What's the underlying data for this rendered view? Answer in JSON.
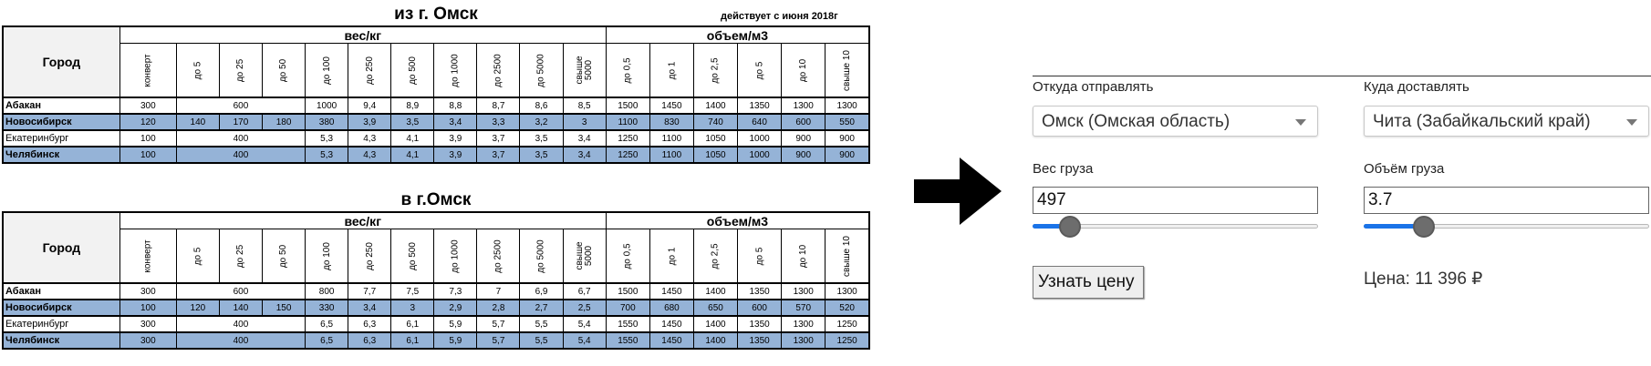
{
  "tables": [
    {
      "title": "из г. Омск",
      "note": "действует с июня 2018г",
      "city_header": "Город",
      "group_weight": "вес/кг",
      "group_volume": "объем/м3",
      "rows": [
        {
          "city": "Абакан",
          "cells": [
            {
              "v": "300",
              "s": 1
            },
            {
              "v": "600",
              "s": 3
            },
            {
              "v": "1000",
              "s": 1
            },
            {
              "v": "9,4",
              "s": 1
            },
            {
              "v": "8,9",
              "s": 1
            },
            {
              "v": "8,8",
              "s": 1
            },
            {
              "v": "8,7",
              "s": 1
            },
            {
              "v": "8,6",
              "s": 1
            },
            {
              "v": "8,5",
              "s": 1
            },
            {
              "v": "1500",
              "s": 1
            },
            {
              "v": "1450",
              "s": 1
            },
            {
              "v": "1400",
              "s": 1
            },
            {
              "v": "1350",
              "s": 1
            },
            {
              "v": "1300",
              "s": 1
            },
            {
              "v": "1300",
              "s": 1
            }
          ]
        },
        {
          "city": "Новосибирск",
          "cells": [
            {
              "v": "120",
              "s": 1
            },
            {
              "v": "140",
              "s": 1
            },
            {
              "v": "170",
              "s": 1
            },
            {
              "v": "180",
              "s": 1
            },
            {
              "v": "380",
              "s": 1
            },
            {
              "v": "3,9",
              "s": 1
            },
            {
              "v": "3,5",
              "s": 1
            },
            {
              "v": "3,4",
              "s": 1
            },
            {
              "v": "3,3",
              "s": 1
            },
            {
              "v": "3,2",
              "s": 1
            },
            {
              "v": "3",
              "s": 1
            },
            {
              "v": "1100",
              "s": 1
            },
            {
              "v": "830",
              "s": 1
            },
            {
              "v": "740",
              "s": 1
            },
            {
              "v": "640",
              "s": 1
            },
            {
              "v": "600",
              "s": 1
            },
            {
              "v": "550",
              "s": 1
            }
          ]
        },
        {
          "city": "Екатеринбург",
          "cells": [
            {
              "v": "100",
              "s": 1
            },
            {
              "v": "400",
              "s": 3
            },
            {
              "v": "5,3",
              "s": 1
            },
            {
              "v": "4,3",
              "s": 1
            },
            {
              "v": "4,1",
              "s": 1
            },
            {
              "v": "3,9",
              "s": 1
            },
            {
              "v": "3,7",
              "s": 1
            },
            {
              "v": "3,5",
              "s": 1
            },
            {
              "v": "3,4",
              "s": 1
            },
            {
              "v": "1250",
              "s": 1
            },
            {
              "v": "1100",
              "s": 1
            },
            {
              "v": "1050",
              "s": 1
            },
            {
              "v": "1000",
              "s": 1
            },
            {
              "v": "900",
              "s": 1
            },
            {
              "v": "900",
              "s": 1
            }
          ]
        },
        {
          "city": "Челябинск",
          "cells": [
            {
              "v": "100",
              "s": 1
            },
            {
              "v": "400",
              "s": 3
            },
            {
              "v": "5,3",
              "s": 1
            },
            {
              "v": "4,3",
              "s": 1
            },
            {
              "v": "4,1",
              "s": 1
            },
            {
              "v": "3,9",
              "s": 1
            },
            {
              "v": "3,7",
              "s": 1
            },
            {
              "v": "3,5",
              "s": 1
            },
            {
              "v": "3,4",
              "s": 1
            },
            {
              "v": "1250",
              "s": 1
            },
            {
              "v": "1100",
              "s": 1
            },
            {
              "v": "1050",
              "s": 1
            },
            {
              "v": "1000",
              "s": 1
            },
            {
              "v": "900",
              "s": 1
            },
            {
              "v": "900",
              "s": 1
            }
          ]
        }
      ]
    },
    {
      "title": "в г.Омск",
      "city_header": "Город",
      "group_weight": "вес/кг",
      "group_volume": "объем/м3",
      "rows": [
        {
          "city": "Абакан",
          "cells": [
            {
              "v": "300",
              "s": 1
            },
            {
              "v": "600",
              "s": 3
            },
            {
              "v": "800",
              "s": 1
            },
            {
              "v": "7,7",
              "s": 1
            },
            {
              "v": "7,5",
              "s": 1
            },
            {
              "v": "7,3",
              "s": 1
            },
            {
              "v": "7",
              "s": 1
            },
            {
              "v": "6,9",
              "s": 1
            },
            {
              "v": "6,7",
              "s": 1
            },
            {
              "v": "1500",
              "s": 1
            },
            {
              "v": "1450",
              "s": 1
            },
            {
              "v": "1400",
              "s": 1
            },
            {
              "v": "1350",
              "s": 1
            },
            {
              "v": "1300",
              "s": 1
            },
            {
              "v": "1300",
              "s": 1
            }
          ]
        },
        {
          "city": "Новосибирск",
          "cells": [
            {
              "v": "100",
              "s": 1
            },
            {
              "v": "120",
              "s": 1
            },
            {
              "v": "140",
              "s": 1
            },
            {
              "v": "150",
              "s": 1
            },
            {
              "v": "330",
              "s": 1
            },
            {
              "v": "3,4",
              "s": 1
            },
            {
              "v": "3",
              "s": 1
            },
            {
              "v": "2,9",
              "s": 1
            },
            {
              "v": "2,8",
              "s": 1
            },
            {
              "v": "2,7",
              "s": 1
            },
            {
              "v": "2,5",
              "s": 1
            },
            {
              "v": "700",
              "s": 1
            },
            {
              "v": "680",
              "s": 1
            },
            {
              "v": "650",
              "s": 1
            },
            {
              "v": "600",
              "s": 1
            },
            {
              "v": "570",
              "s": 1
            },
            {
              "v": "520",
              "s": 1
            }
          ]
        },
        {
          "city": "Екатеринбург",
          "cells": [
            {
              "v": "300",
              "s": 1
            },
            {
              "v": "400",
              "s": 3
            },
            {
              "v": "6,5",
              "s": 1
            },
            {
              "v": "6,3",
              "s": 1
            },
            {
              "v": "6,1",
              "s": 1
            },
            {
              "v": "5,9",
              "s": 1
            },
            {
              "v": "5,7",
              "s": 1
            },
            {
              "v": "5,5",
              "s": 1
            },
            {
              "v": "5,4",
              "s": 1
            },
            {
              "v": "1550",
              "s": 1
            },
            {
              "v": "1450",
              "s": 1
            },
            {
              "v": "1400",
              "s": 1
            },
            {
              "v": "1350",
              "s": 1
            },
            {
              "v": "1300",
              "s": 1
            },
            {
              "v": "1250",
              "s": 1
            }
          ]
        },
        {
          "city": "Челябинск",
          "cells": [
            {
              "v": "300",
              "s": 1
            },
            {
              "v": "400",
              "s": 3
            },
            {
              "v": "6,5",
              "s": 1
            },
            {
              "v": "6,3",
              "s": 1
            },
            {
              "v": "6,1",
              "s": 1
            },
            {
              "v": "5,9",
              "s": 1
            },
            {
              "v": "5,7",
              "s": 1
            },
            {
              "v": "5,5",
              "s": 1
            },
            {
              "v": "5,4",
              "s": 1
            },
            {
              "v": "1550",
              "s": 1
            },
            {
              "v": "1450",
              "s": 1
            },
            {
              "v": "1400",
              "s": 1
            },
            {
              "v": "1350",
              "s": 1
            },
            {
              "v": "1300",
              "s": 1
            },
            {
              "v": "1250",
              "s": 1
            }
          ]
        }
      ]
    }
  ],
  "weight_columns": [
    "конверт",
    "до 5",
    "до 25",
    "до 50",
    "до 100",
    "до 250",
    "до 500",
    "до 1000",
    "до 2500",
    "до 5000",
    "свыше 5000"
  ],
  "volume_columns": [
    "до 0,5",
    "до 1",
    "до 2,5",
    "до 5",
    "до 10",
    "свыше 10"
  ],
  "arrow_icon": "arrow-right-icon",
  "form": {
    "from_label": "Откуда отправлять",
    "from_value": "Омск (Омская область)",
    "to_label": "Куда доставлять",
    "to_value": "Чита (Забайкальский край)",
    "weight_label": "Вес груза",
    "weight_value": "497",
    "weight_slider_fraction": 0.13,
    "volume_label": "Объём груза",
    "volume_value": "3.7",
    "volume_slider_fraction": 0.21,
    "button_label": "Узнать цену",
    "price_text": "Цена: 11 396 ₽",
    "accent_color": "#1a73e8",
    "row_highlight_color": "#95b3d7"
  }
}
